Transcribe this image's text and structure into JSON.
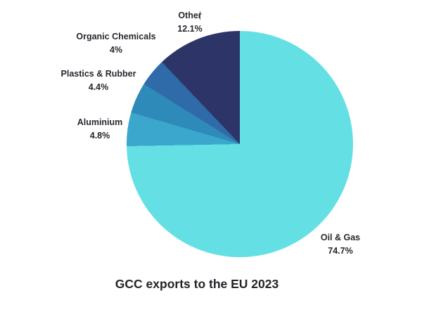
{
  "chart_data": {
    "type": "pie",
    "title": "GCC exports to the EU 2023",
    "start_angle_deg": 0,
    "direction": "clockwise",
    "legend_position": "none",
    "labels_position": "outside",
    "background_color": "#ffffff",
    "text_color": "#26282e",
    "slices": [
      {
        "name": "Oil & Gas",
        "value": 74.7,
        "pct_label": "74.7%",
        "color": "#64e0e4"
      },
      {
        "name": "Aluminium",
        "value": 4.8,
        "pct_label": "4.8%",
        "color": "#3ba7cd"
      },
      {
        "name": "Plastics & Rubber",
        "value": 4.4,
        "pct_label": "4.4%",
        "color": "#2e8ab8"
      },
      {
        "name": "Organic Chemicals",
        "value": 4.0,
        "pct_label": "4%",
        "color": "#2f6ba8"
      },
      {
        "name": "Other",
        "value": 12.1,
        "pct_label": "12.1%",
        "color": "#2d3468"
      }
    ]
  }
}
